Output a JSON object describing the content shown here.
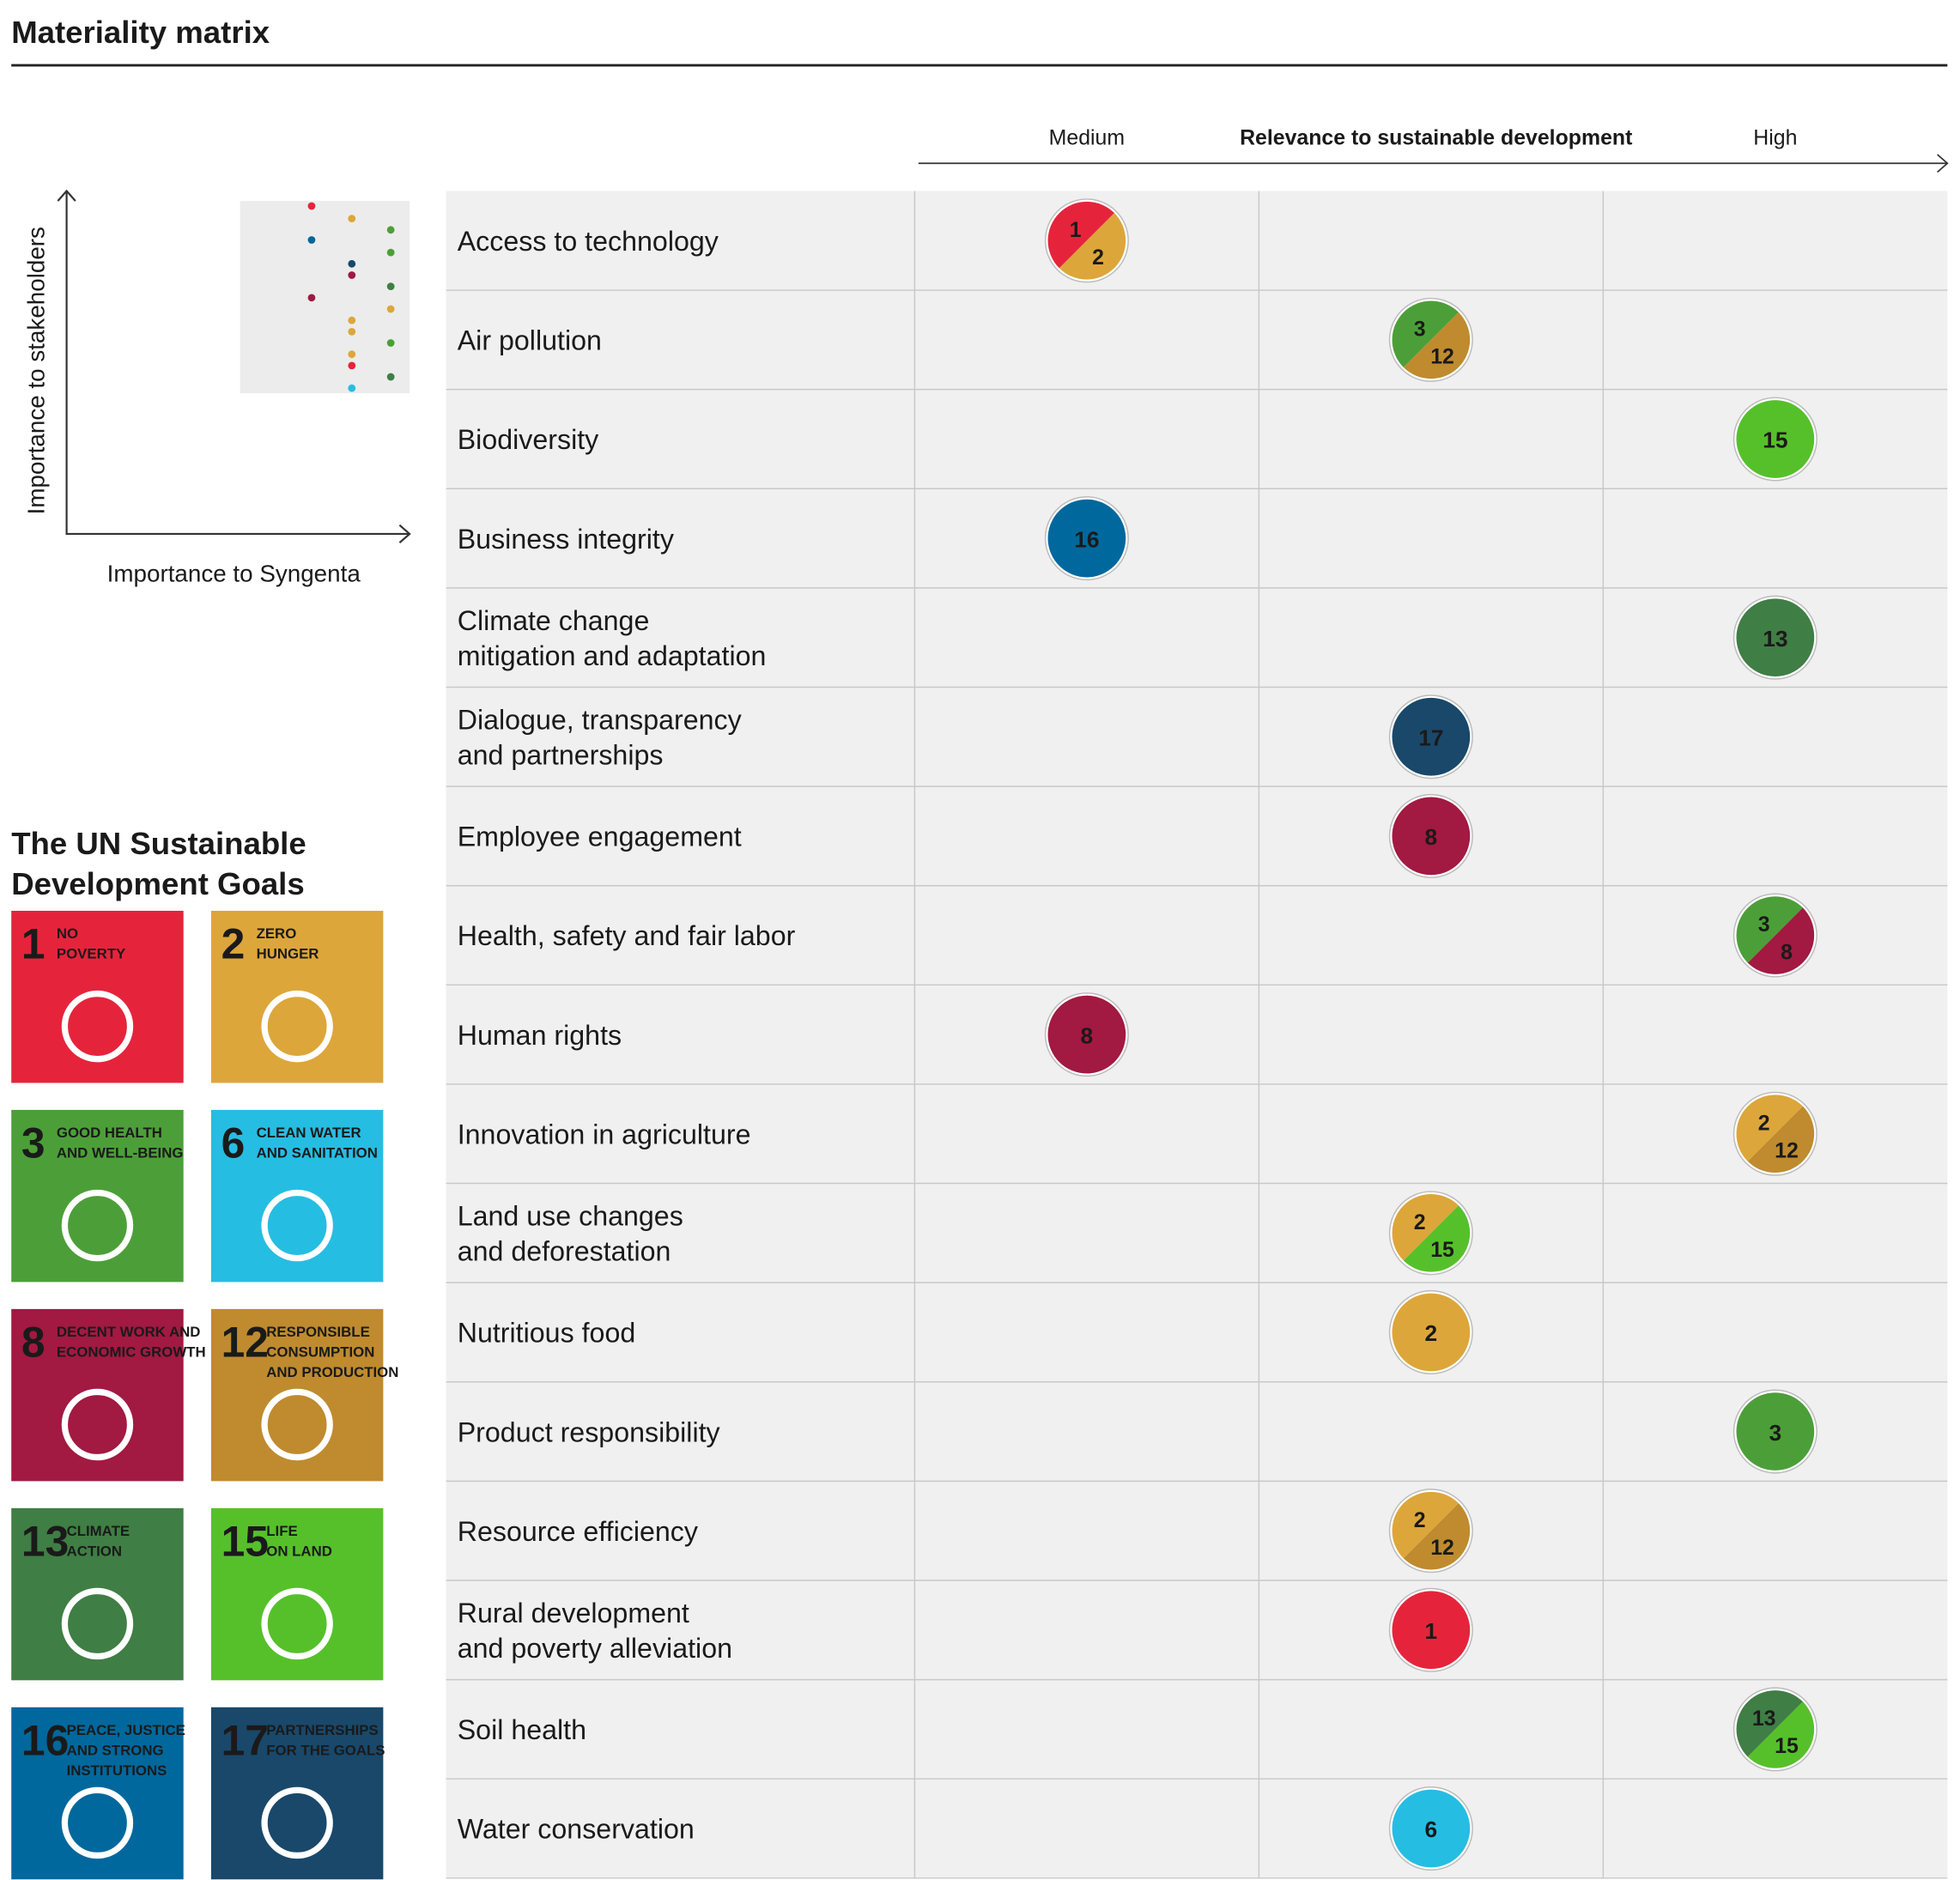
{
  "header": {
    "title": "Materiality matrix"
  },
  "axis_key": {
    "y_label": "Importance to stakeholders",
    "x_label": "Importance to Syngenta"
  },
  "matrix": {
    "axis_label": "Relevance to sustainable development",
    "columns": [
      "Medium",
      null,
      "High"
    ],
    "rows": [
      {
        "topic": [
          "Access to technology"
        ],
        "column": 0,
        "goals": [
          1,
          2
        ]
      },
      {
        "topic": [
          "Air pollution"
        ],
        "column": 1,
        "goals": [
          3,
          12
        ]
      },
      {
        "topic": [
          "Biodiversity"
        ],
        "column": 2,
        "goals": [
          15
        ]
      },
      {
        "topic": [
          "Business integrity"
        ],
        "column": 0,
        "goals": [
          16
        ]
      },
      {
        "topic": [
          "Climate change",
          "mitigation and adaptation"
        ],
        "column": 2,
        "goals": [
          13
        ]
      },
      {
        "topic": [
          "Dialogue, transparency",
          "and partnerships"
        ],
        "column": 1,
        "goals": [
          17
        ]
      },
      {
        "topic": [
          "Employee engagement"
        ],
        "column": 1,
        "goals": [
          8
        ]
      },
      {
        "topic": [
          "Health, safety and fair labor"
        ],
        "column": 2,
        "goals": [
          3,
          8
        ]
      },
      {
        "topic": [
          "Human rights"
        ],
        "column": 0,
        "goals": [
          8
        ]
      },
      {
        "topic": [
          "Innovation in agriculture"
        ],
        "column": 2,
        "goals": [
          2,
          12
        ]
      },
      {
        "topic": [
          "Land use changes",
          "and deforestation"
        ],
        "column": 1,
        "goals": [
          2,
          15
        ]
      },
      {
        "topic": [
          "Nutritious food"
        ],
        "column": 1,
        "goals": [
          2
        ]
      },
      {
        "topic": [
          "Product responsibility"
        ],
        "column": 2,
        "goals": [
          3
        ]
      },
      {
        "topic": [
          "Resource efficiency"
        ],
        "column": 1,
        "goals": [
          2,
          12
        ]
      },
      {
        "topic": [
          "Rural development",
          "and poverty alleviation"
        ],
        "column": 1,
        "goals": [
          1
        ]
      },
      {
        "topic": [
          "Soil health"
        ],
        "column": 2,
        "goals": [
          13,
          15
        ]
      },
      {
        "topic": [
          "Water conservation"
        ],
        "column": 1,
        "goals": [
          6
        ]
      }
    ]
  },
  "sdg_legend": {
    "title": [
      "The UN Sustainable",
      "Development Goals"
    ],
    "goals": [
      {
        "number": 1,
        "label": [
          "NO",
          "POVERTY"
        ],
        "color": "#e5243b"
      },
      {
        "number": 2,
        "label": [
          "ZERO",
          "HUNGER"
        ],
        "color": "#dda63a"
      },
      {
        "number": 3,
        "label": [
          "GOOD HEALTH",
          "AND WELL-BEING"
        ],
        "color": "#4c9f38"
      },
      {
        "number": 6,
        "label": [
          "CLEAN WATER",
          "AND SANITATION"
        ],
        "color": "#26bde2"
      },
      {
        "number": 8,
        "label": [
          "DECENT WORK AND",
          "ECONOMIC GROWTH"
        ],
        "color": "#a21942"
      },
      {
        "number": 12,
        "label": [
          "RESPONSIBLE",
          "CONSUMPTION",
          "AND PRODUCTION"
        ],
        "color": "#bf8b2e"
      },
      {
        "number": 13,
        "label": [
          "CLIMATE",
          "ACTION"
        ],
        "color": "#3f7e44"
      },
      {
        "number": 15,
        "label": [
          "LIFE",
          "ON LAND"
        ],
        "color": "#56c02b"
      },
      {
        "number": 16,
        "label": [
          "PEACE, JUSTICE",
          "AND STRONG",
          "INSTITUTIONS"
        ],
        "color": "#00689d"
      },
      {
        "number": 17,
        "label": [
          "PARTNERSHIPS",
          "FOR THE GOALS"
        ],
        "color": "#19486a"
      }
    ]
  }
}
